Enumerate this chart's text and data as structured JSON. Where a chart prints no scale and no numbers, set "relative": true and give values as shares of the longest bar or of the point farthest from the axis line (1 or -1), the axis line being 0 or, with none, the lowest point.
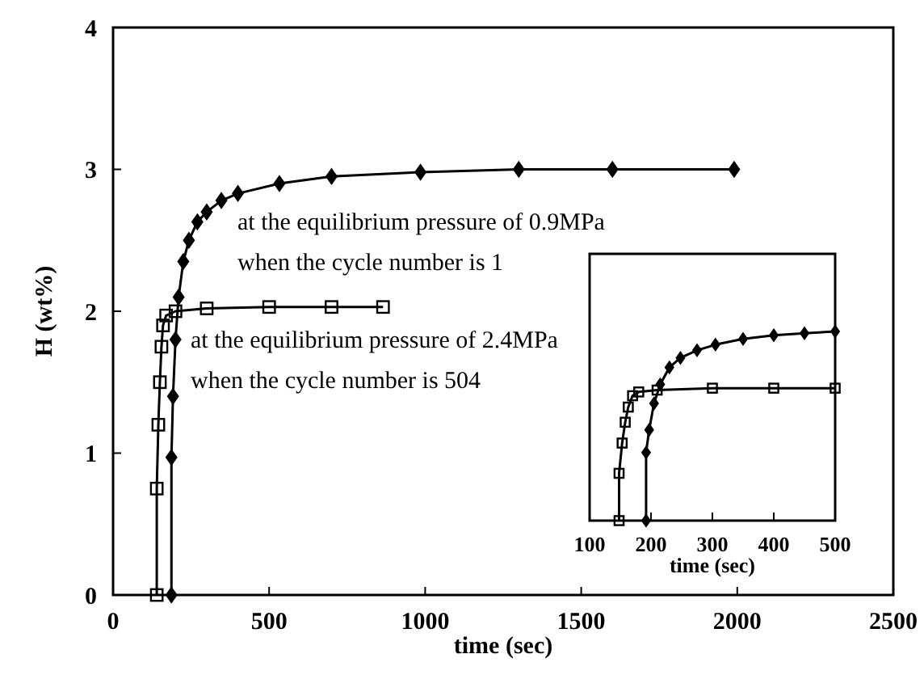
{
  "chart_data": [
    {
      "type": "line",
      "xlabel": "time (sec)",
      "ylabel": "H (wt%)",
      "xlim": [
        0,
        2500
      ],
      "xticks": [
        0,
        500,
        1000,
        1500,
        2000,
        2500
      ],
      "ylim": [
        0,
        4
      ],
      "yticks": [
        0,
        1,
        2,
        3,
        4
      ],
      "annotations": [
        "at the equilibrium pressure of 0.9MPa\nwhen the cycle number is 1",
        "at the equilibrium pressure of 2.4MPa\nwhen the cycle number is 504"
      ],
      "series": [
        {
          "color": "#000000",
          "marker": "diamond",
          "x": [
            187,
            187,
            192,
            200,
            210,
            225,
            243,
            270,
            300,
            347,
            400,
            533,
            700,
            985,
            1300,
            1600,
            1990
          ],
          "values": [
            0,
            0.97,
            1.4,
            1.8,
            2.1,
            2.35,
            2.5,
            2.63,
            2.7,
            2.78,
            2.83,
            2.9,
            2.95,
            2.98,
            3.0,
            3.0,
            3.0
          ]
        },
        {
          "color": "#000000",
          "marker": "square",
          "x": [
            140,
            140,
            145,
            150,
            155,
            160,
            170,
            200,
            300,
            500,
            700,
            865
          ],
          "values": [
            0,
            0.75,
            1.2,
            1.5,
            1.75,
            1.9,
            1.97,
            2.0,
            2.02,
            2.03,
            2.03,
            2.03
          ]
        }
      ]
    },
    {
      "type": "line",
      "xlabel": "time (sec)",
      "relative": true,
      "tick_labels": "x",
      "xlim": [
        100,
        500
      ],
      "xticks": [
        100,
        200,
        300,
        400,
        500
      ],
      "series": [
        {
          "color": "#000000",
          "marker": "diamond",
          "x": [
            192,
            192,
            197,
            205,
            215,
            230,
            248,
            275,
            305,
            350,
            400,
            450,
            500
          ],
          "values": [
            0,
            0.36,
            0.48,
            0.62,
            0.72,
            0.81,
            0.86,
            0.9,
            0.93,
            0.96,
            0.98,
            0.99,
            1.0
          ]
        },
        {
          "color": "#000000",
          "marker": "square",
          "x": [
            148,
            148,
            153,
            158,
            163,
            170,
            180,
            210,
            300,
            400,
            500
          ],
          "values": [
            0,
            0.25,
            0.41,
            0.52,
            0.6,
            0.66,
            0.68,
            0.69,
            0.7,
            0.7,
            0.7
          ]
        }
      ]
    }
  ]
}
